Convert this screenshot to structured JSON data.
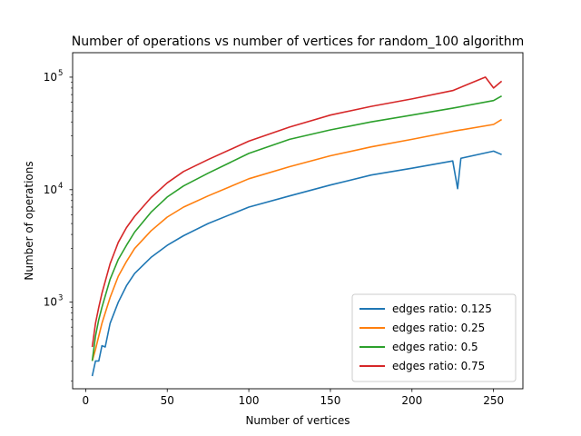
{
  "chart_data": {
    "type": "line",
    "title": "Number of operations vs number of vertices for random_100 algorithm",
    "xlabel": "Number of vertices",
    "ylabel": "Number of operations",
    "xlim": [
      -8,
      268
    ],
    "ylim": [
      170,
      165000
    ],
    "yscale": "log",
    "x_ticks": [
      0,
      50,
      100,
      150,
      200,
      250
    ],
    "y_ticks": [
      {
        "value": 1000,
        "base": "10",
        "exp": "3"
      },
      {
        "value": 10000,
        "base": "10",
        "exp": "4"
      },
      {
        "value": 100000,
        "base": "10",
        "exp": "5"
      }
    ],
    "legend_position": "lower right",
    "series": [
      {
        "name": "edges ratio: 0.125",
        "color": "#1f77b4",
        "x": [
          4,
          6,
          8,
          10,
          12,
          15,
          20,
          25,
          30,
          40,
          50,
          60,
          75,
          100,
          125,
          150,
          175,
          200,
          225,
          228,
          230,
          250,
          255
        ],
        "y": [
          220,
          300,
          300,
          410,
          400,
          650,
          1000,
          1400,
          1800,
          2500,
          3200,
          3900,
          5000,
          7000,
          8800,
          11000,
          13500,
          15500,
          18000,
          10200,
          19000,
          22000,
          20500
        ]
      },
      {
        "name": "edges ratio: 0.25",
        "color": "#ff7f0e",
        "x": [
          4,
          6,
          8,
          10,
          15,
          20,
          25,
          30,
          40,
          50,
          60,
          75,
          100,
          125,
          150,
          175,
          200,
          225,
          250,
          255
        ],
        "y": [
          300,
          380,
          500,
          650,
          1100,
          1700,
          2300,
          3000,
          4300,
          5700,
          7000,
          8800,
          12500,
          16000,
          20000,
          24000,
          28000,
          33000,
          38000,
          42000
        ]
      },
      {
        "name": "edges ratio: 0.5",
        "color": "#2ca02c",
        "x": [
          4,
          6,
          8,
          10,
          15,
          20,
          25,
          30,
          40,
          50,
          60,
          75,
          100,
          125,
          150,
          175,
          200,
          225,
          250,
          255
        ],
        "y": [
          300,
          500,
          700,
          900,
          1600,
          2400,
          3200,
          4200,
          6300,
          8600,
          10800,
          14000,
          21000,
          28000,
          34000,
          40000,
          46000,
          53000,
          62000,
          68000
        ]
      },
      {
        "name": "edges ratio: 0.75",
        "color": "#d62728",
        "x": [
          4,
          6,
          8,
          10,
          15,
          20,
          25,
          30,
          40,
          50,
          60,
          75,
          100,
          125,
          150,
          175,
          200,
          225,
          245,
          250,
          255
        ],
        "y": [
          400,
          650,
          900,
          1200,
          2200,
          3400,
          4600,
          5800,
          8500,
          11500,
          14500,
          18500,
          27000,
          36000,
          46000,
          55000,
          64000,
          76000,
          100000,
          80000,
          92000
        ]
      }
    ]
  }
}
